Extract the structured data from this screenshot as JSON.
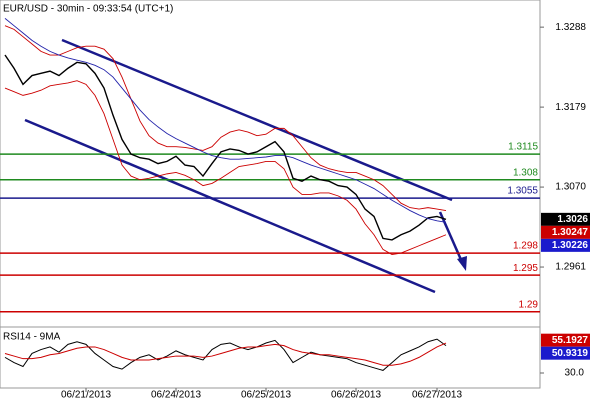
{
  "chart_data": {
    "type": "line",
    "title": "EUR/USD - 30min - 09:33:54 (UTC+1)",
    "xlim": [
      0,
      49
    ],
    "xticks": [
      {
        "value": 9,
        "label": "06/21/2013"
      },
      {
        "value": 19,
        "label": "06/24/2013"
      },
      {
        "value": 29,
        "label": "06/25/2013"
      },
      {
        "value": 39,
        "label": "06/26/2013"
      },
      {
        "value": 48,
        "label": "06/27/2013"
      }
    ],
    "ylim": [
      1.2882,
      1.3325
    ],
    "yticks": [
      1.3288,
      1.3179,
      {
        "value": 1.307,
        "label": "1.3070"
      },
      1.2961
    ],
    "series": [
      {
        "name": "Price",
        "color": "#000000",
        "values": [
          1.325,
          1.3232,
          1.321,
          1.3222,
          1.3225,
          1.3228,
          1.3222,
          1.3232,
          1.324,
          1.3238,
          1.3225,
          1.3205,
          1.3168,
          1.3135,
          1.3115,
          1.311,
          1.3108,
          1.3102,
          1.3105,
          1.3112,
          1.31,
          1.3098,
          1.3085,
          1.3102,
          1.3118,
          1.3122,
          1.312,
          1.3115,
          1.3118,
          1.3125,
          1.3132,
          1.3118,
          1.3082,
          1.3078,
          1.3085,
          1.308,
          1.3078,
          1.3072,
          1.307,
          1.306,
          1.304,
          1.303,
          1.3,
          1.2998,
          1.3005,
          1.301,
          1.3018,
          1.3028,
          1.303,
          1.3026
        ]
      },
      {
        "color": "#cc0000",
        "values": [
          1.329,
          1.3285,
          1.3275,
          1.3265,
          1.3255,
          1.325,
          1.325,
          1.3255,
          1.326,
          1.3262,
          1.3262,
          1.3258,
          1.3245,
          1.322,
          1.319,
          1.316,
          1.314,
          1.313,
          1.3125,
          1.3125,
          1.3124,
          1.3122,
          1.312,
          1.3125,
          1.3138,
          1.3145,
          1.3148,
          1.3145,
          1.314,
          1.3142,
          1.315,
          1.315,
          1.314,
          1.3125,
          1.311,
          1.31,
          1.3095,
          1.3092,
          1.309,
          1.309,
          1.3085,
          1.308,
          1.3072,
          1.306,
          1.3048,
          1.3042,
          1.304,
          1.3042,
          1.304,
          1.3038
        ]
      },
      {
        "color": "#cc0000",
        "values": [
          1.3205,
          1.32,
          1.3195,
          1.3198,
          1.3202,
          1.3208,
          1.321,
          1.3212,
          1.3215,
          1.321,
          1.3195,
          1.317,
          1.3135,
          1.31,
          1.3085,
          1.308,
          1.3082,
          1.3085,
          1.3088,
          1.309,
          1.3086,
          1.308,
          1.3072,
          1.3075,
          1.3082,
          1.309,
          1.3098,
          1.31,
          1.3102,
          1.3105,
          1.3105,
          1.3095,
          1.307,
          1.306,
          1.306,
          1.3062,
          1.3062,
          1.3058,
          1.3052,
          1.304,
          1.302,
          1.3005,
          1.2985,
          1.2978,
          1.298,
          1.2985,
          1.299,
          1.2995,
          1.3,
          1.3005
        ]
      },
      {
        "color": "#2222aa",
        "values": [
          1.33,
          1.329,
          1.328,
          1.327,
          1.3262,
          1.3255,
          1.325,
          1.3246,
          1.3243,
          1.324,
          1.3236,
          1.323,
          1.322,
          1.3205,
          1.319,
          1.3175,
          1.3162,
          1.3152,
          1.3143,
          1.3136,
          1.313,
          1.3124,
          1.3118,
          1.3113,
          1.311,
          1.3108,
          1.3108,
          1.3109,
          1.311,
          1.3111,
          1.3113,
          1.3113,
          1.311,
          1.3105,
          1.31,
          1.3096,
          1.3092,
          1.3088,
          1.3084,
          1.308,
          1.3074,
          1.3068,
          1.306,
          1.3052,
          1.3045,
          1.3038,
          1.3032,
          1.3027,
          1.3024,
          1.3022
        ]
      }
    ],
    "levels": [
      {
        "value": 1.3115,
        "color": "#1f8a1f"
      },
      {
        "value": 1.308,
        "color": "#1f8a1f"
      },
      {
        "value": 1.3055,
        "color": "#1a1a8c"
      },
      {
        "value": 1.298,
        "color": "#cc0000"
      },
      {
        "value": 1.295,
        "color": "#cc0000"
      },
      {
        "value": 1.29,
        "color": "#cc0000"
      }
    ],
    "price_tags": [
      {
        "value": 1.3026,
        "color": "#000000"
      },
      {
        "value": 1.30247,
        "color": "#cc0000"
      },
      {
        "value": 1.30226,
        "color": "#1a1acc"
      }
    ],
    "rsi": {
      "title": "RSI14 - 9MA",
      "ylim": [
        18.5,
        63
      ],
      "yticks": [
        {
          "value": 30,
          "label": "30.0"
        }
      ],
      "series": [
        {
          "color": "#000000",
          "values": [
            42,
            38,
            35,
            45,
            48,
            50,
            46,
            52,
            54,
            52,
            45,
            40,
            35,
            33,
            38,
            42,
            44,
            40,
            43,
            47,
            44,
            42,
            40,
            48,
            52,
            53,
            50,
            48,
            50,
            53,
            55,
            48,
            38,
            42,
            46,
            44,
            43,
            42,
            41,
            38,
            36,
            34,
            32,
            38,
            44,
            47,
            50,
            54,
            56,
            51
          ]
        },
        {
          "color": "#cc0000",
          "values": [
            45,
            43,
            41,
            41,
            42,
            44,
            45,
            47,
            49,
            50,
            50,
            48,
            45,
            42,
            40,
            40,
            40,
            41,
            42,
            43,
            43,
            43,
            42,
            43,
            45,
            47,
            49,
            50,
            50,
            51,
            52,
            51,
            48,
            46,
            45,
            44,
            44,
            43,
            42,
            41,
            40,
            38,
            36,
            36,
            37,
            39,
            42,
            46,
            50,
            53
          ]
        }
      ],
      "tags": [
        {
          "value": 55.1927,
          "color": "#cc0000"
        },
        {
          "value": 50.9319,
          "color": "#1a1acc"
        }
      ]
    }
  }
}
